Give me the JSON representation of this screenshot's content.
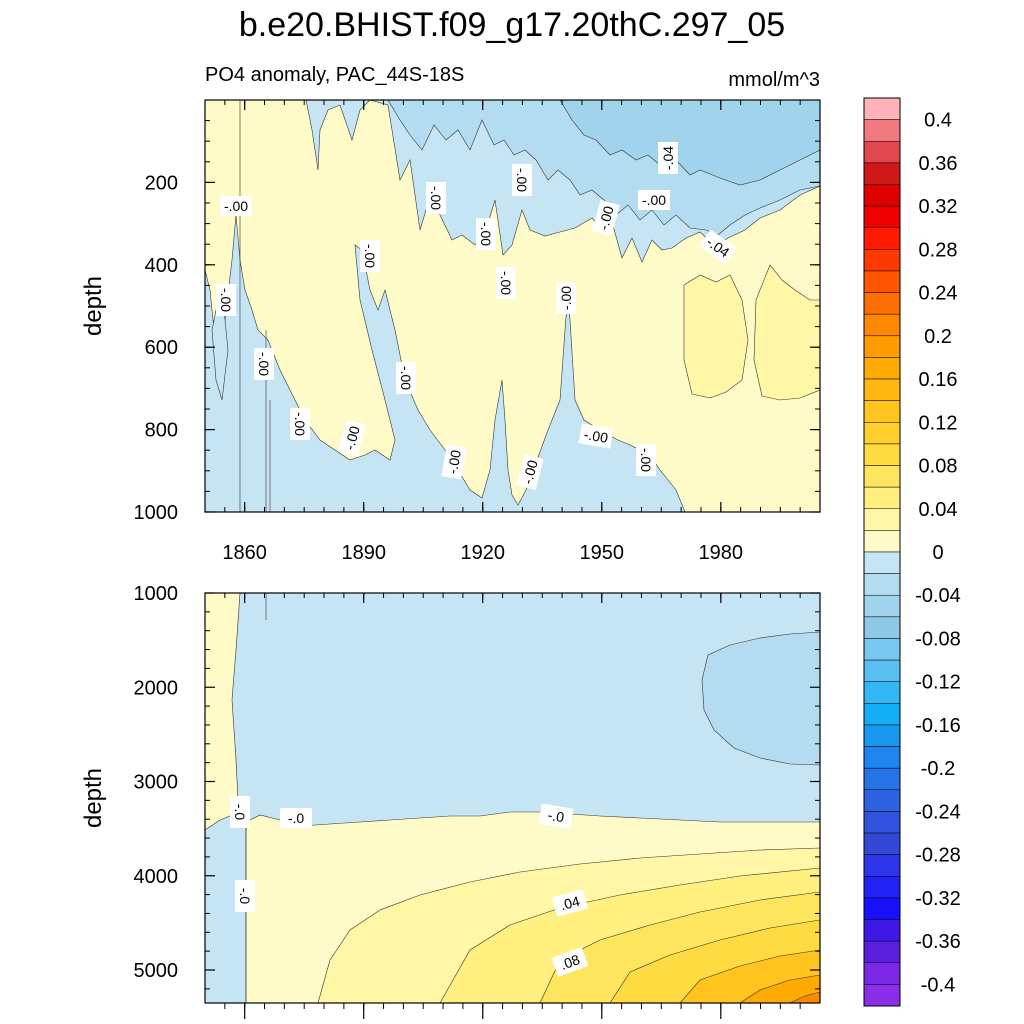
{
  "title": "b.e20.BHIST.f09_g17.20thC.297_05",
  "subtitle_left": "PO4 anomaly, PAC_44S-18S",
  "subtitle_right": "mmol/m^3",
  "chart_data": [
    {
      "type": "heatmap",
      "panel": "upper",
      "ylabel": "depth",
      "xlim": [
        1850,
        2005
      ],
      "ylim": [
        1000,
        0
      ],
      "x_ticks": [
        "1860",
        "1890",
        "1920",
        "1950",
        "1980"
      ],
      "y_ticks": [
        "200",
        "400",
        "600",
        "800",
        "1000"
      ],
      "contour_labels": [
        "-.00",
        "-.00",
        "-.00",
        "-.00",
        "-.00",
        "-.00",
        "-.00",
        "-.00",
        "-.00",
        "-.00",
        "-.00",
        "-.00",
        "-.00",
        "-.00",
        "-.00",
        "-.00",
        "-.00",
        "-.04"
      ]
    },
    {
      "type": "heatmap",
      "panel": "lower",
      "ylabel": "depth",
      "xlim": [
        1850,
        2005
      ],
      "ylim": [
        5350,
        1000
      ],
      "y_ticks": [
        "1000",
        "2000",
        "3000",
        "4000",
        "5000"
      ],
      "contour_labels": [
        "-.0",
        "-.0",
        "-.0",
        "-.0",
        ".04",
        ".08"
      ]
    }
  ],
  "colorbar": {
    "labels": [
      "0.4",
      "0.36",
      "0.32",
      "0.28",
      "0.24",
      "0.2",
      "0.16",
      "0.12",
      "0.08",
      "0.04",
      "0",
      "-0.04",
      "-0.08",
      "-0.12",
      "-0.16",
      "-0.2",
      "-0.24",
      "-0.28",
      "-0.32",
      "-0.36",
      "-0.4"
    ],
    "colors": [
      "#ffb3b8",
      "#f07a7f",
      "#e0474f",
      "#d01818",
      "#e00000",
      "#ee0000",
      "#ff1a00",
      "#ff3a00",
      "#ff5500",
      "#ff6e00",
      "#ff8800",
      "#ff9a00",
      "#ffaa00",
      "#ffb812",
      "#ffc41e",
      "#ffd02d",
      "#ffdb42",
      "#ffe55e",
      "#fff080",
      "#fff7a6",
      "#fffbc8",
      "#c5e5f5",
      "#b3dcf0",
      "#a0d3ec",
      "#8dc9e7",
      "#78c8f0",
      "#5ac0f2",
      "#2fb8f3",
      "#13aef5",
      "#1998f2",
      "#1f85ee",
      "#2673e8",
      "#2d62e2",
      "#3152dc",
      "#3448d6",
      "#2e36ea",
      "#2222f4",
      "#1810fa",
      "#3d18e6",
      "#5a1fdc",
      "#7b28e6",
      "#8a2ee8"
    ]
  }
}
